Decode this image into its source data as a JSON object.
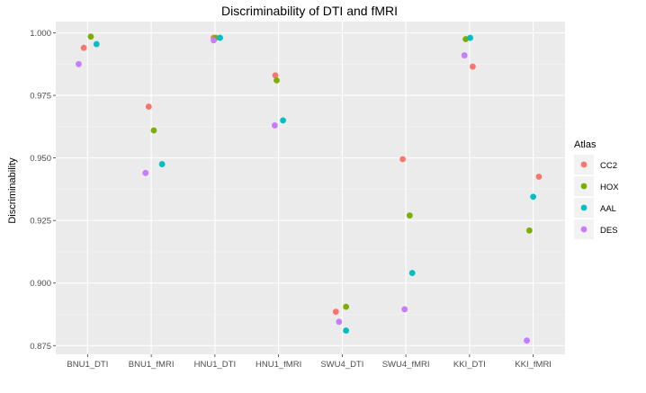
{
  "chart_data": {
    "type": "scatter",
    "title": "Discriminability of DTI and fMRI",
    "xlabel": "",
    "ylabel": "Discriminability",
    "categories": [
      "BNU1_DTI",
      "BNU1_fMRI",
      "HNU1_DTI",
      "HNU1_fMRI",
      "SWU4_DTI",
      "SWU4_fMRI",
      "KKI_DTI",
      "KKI_fMRI"
    ],
    "ylim": [
      0.8715,
      1.0045
    ],
    "yticks": [
      0.875,
      0.9,
      0.925,
      0.95,
      0.975,
      1.0
    ],
    "ytick_labels": [
      "0.875",
      "0.900",
      "0.925",
      "0.950",
      "0.975",
      "1.000"
    ],
    "grid": true,
    "legend": {
      "title": "Atlas",
      "position": "right"
    },
    "series": [
      {
        "name": "CC2",
        "color": "#F8766D",
        "jitter": [
          -0.06,
          -0.04,
          -0.02,
          -0.05,
          -0.1,
          -0.05,
          0.05,
          0.09
        ],
        "values": [
          0.994,
          0.9705,
          0.998,
          0.983,
          0.8885,
          0.9495,
          0.9865,
          0.9425
        ]
      },
      {
        "name": "HOX",
        "color": "#7CAE00",
        "jitter": [
          0.05,
          0.04,
          0.01,
          -0.03,
          0.06,
          0.06,
          -0.06,
          -0.06
        ],
        "values": [
          0.9985,
          0.961,
          0.998,
          0.981,
          0.8905,
          0.927,
          0.9975,
          0.921
        ]
      },
      {
        "name": "AAL",
        "color": "#00BFC4",
        "jitter": [
          0.14,
          0.17,
          0.08,
          0.07,
          0.06,
          0.1,
          0.01,
          0.0
        ],
        "values": [
          0.9955,
          0.9475,
          0.998,
          0.965,
          0.881,
          0.904,
          0.998,
          0.9345
        ]
      },
      {
        "name": "DES",
        "color": "#C77CFF",
        "jitter": [
          -0.14,
          -0.09,
          -0.02,
          -0.06,
          -0.05,
          -0.02,
          -0.08,
          -0.1
        ],
        "values": [
          0.9875,
          0.944,
          0.997,
          0.963,
          0.8845,
          0.8895,
          0.991,
          0.877
        ]
      }
    ]
  }
}
